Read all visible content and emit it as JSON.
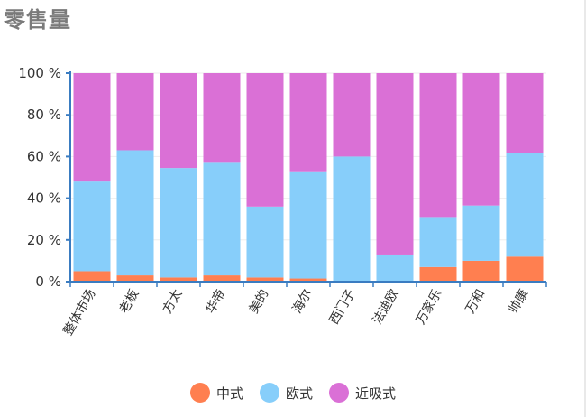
{
  "title": "零售量",
  "chart_data": {
    "type": "bar",
    "stacked": true,
    "normalized": true,
    "categories": [
      "整体市场",
      "老板",
      "方太",
      "华帝",
      "美的",
      "海尔",
      "西门子",
      "法迪欧",
      "万家乐",
      "万和",
      "帅康"
    ],
    "series": [
      {
        "name": "中式",
        "color": "#ff7f50",
        "values": [
          5,
          3,
          2,
          3,
          2,
          1.5,
          0,
          0,
          7,
          10,
          12
        ]
      },
      {
        "name": "欧式",
        "color": "#87cefa",
        "values": [
          43,
          60,
          52.5,
          54,
          34,
          51,
          60,
          13,
          24,
          26.5,
          49.5
        ]
      },
      {
        "name": "近吸式",
        "color": "#da70d6",
        "values": [
          52,
          37,
          45.5,
          43,
          64,
          47.5,
          40,
          87,
          69,
          63.5,
          38.5
        ]
      }
    ],
    "ylim": [
      0,
      100
    ],
    "yticks": [
      "0 %",
      "20 %",
      "40 %",
      "60 %",
      "80 %",
      "100 %"
    ],
    "legend_position": "bottom"
  }
}
